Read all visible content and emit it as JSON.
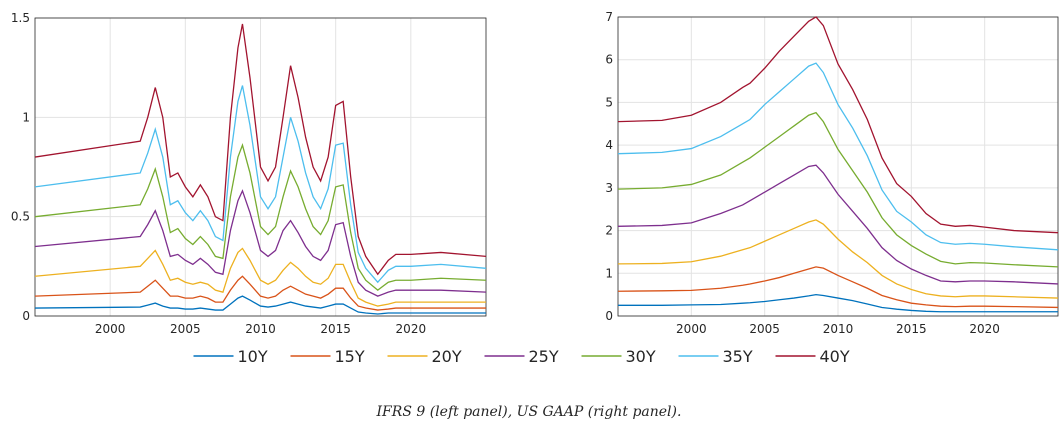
{
  "chart_data": [
    {
      "type": "line",
      "xlim": [
        1995,
        2025
      ],
      "xticks": [
        2000,
        2005,
        2010,
        2015,
        2020
      ],
      "ylim": [
        0,
        1.5
      ],
      "yticks": [
        0,
        0.5,
        1,
        1.5
      ],
      "grid": true,
      "x": [
        1995,
        2002,
        2002.5,
        2003,
        2003.5,
        2004,
        2004.5,
        2005,
        2005.5,
        2006,
        2006.5,
        2007,
        2007.5,
        2008,
        2008.5,
        2008.8,
        2009.3,
        2010,
        2010.5,
        2011,
        2011.5,
        2012,
        2012.5,
        2013,
        2013.5,
        2014,
        2014.5,
        2015,
        2015.5,
        2016,
        2016.5,
        2017,
        2017.8,
        2018.5,
        2019,
        2020,
        2022,
        2025
      ],
      "series": [
        {
          "name": "10Y",
          "color": "#0072BD",
          "values": [
            0.04,
            0.045,
            0.055,
            0.065,
            0.05,
            0.04,
            0.04,
            0.035,
            0.035,
            0.04,
            0.035,
            0.03,
            0.03,
            0.06,
            0.09,
            0.1,
            0.08,
            0.05,
            0.045,
            0.05,
            0.06,
            0.07,
            0.06,
            0.05,
            0.045,
            0.04,
            0.05,
            0.06,
            0.06,
            0.04,
            0.02,
            0.015,
            0.01,
            0.015,
            0.015,
            0.015,
            0.015,
            0.015
          ]
        },
        {
          "name": "15Y",
          "color": "#D95319",
          "values": [
            0.1,
            0.12,
            0.15,
            0.18,
            0.14,
            0.1,
            0.1,
            0.09,
            0.09,
            0.1,
            0.09,
            0.07,
            0.07,
            0.13,
            0.18,
            0.2,
            0.16,
            0.1,
            0.09,
            0.1,
            0.13,
            0.15,
            0.13,
            0.11,
            0.1,
            0.09,
            0.11,
            0.14,
            0.14,
            0.09,
            0.05,
            0.04,
            0.03,
            0.035,
            0.04,
            0.04,
            0.04,
            0.04
          ]
        },
        {
          "name": "20Y",
          "color": "#EDB120",
          "values": [
            0.2,
            0.25,
            0.29,
            0.33,
            0.26,
            0.18,
            0.19,
            0.17,
            0.16,
            0.17,
            0.16,
            0.13,
            0.12,
            0.24,
            0.32,
            0.34,
            0.28,
            0.18,
            0.16,
            0.18,
            0.23,
            0.27,
            0.24,
            0.2,
            0.17,
            0.16,
            0.19,
            0.26,
            0.26,
            0.17,
            0.09,
            0.07,
            0.05,
            0.06,
            0.07,
            0.07,
            0.07,
            0.07
          ]
        },
        {
          "name": "25Y",
          "color": "#7E2F8E",
          "values": [
            0.35,
            0.4,
            0.46,
            0.53,
            0.43,
            0.3,
            0.31,
            0.28,
            0.26,
            0.29,
            0.26,
            0.22,
            0.21,
            0.43,
            0.58,
            0.63,
            0.52,
            0.33,
            0.3,
            0.33,
            0.43,
            0.48,
            0.42,
            0.35,
            0.3,
            0.28,
            0.33,
            0.46,
            0.47,
            0.3,
            0.17,
            0.13,
            0.1,
            0.12,
            0.13,
            0.13,
            0.13,
            0.12
          ]
        },
        {
          "name": "30Y",
          "color": "#77AC30",
          "values": [
            0.5,
            0.56,
            0.64,
            0.74,
            0.6,
            0.42,
            0.44,
            0.39,
            0.36,
            0.4,
            0.36,
            0.3,
            0.29,
            0.6,
            0.8,
            0.86,
            0.72,
            0.45,
            0.41,
            0.45,
            0.6,
            0.73,
            0.65,
            0.54,
            0.45,
            0.41,
            0.48,
            0.65,
            0.66,
            0.42,
            0.24,
            0.18,
            0.13,
            0.17,
            0.18,
            0.18,
            0.19,
            0.18
          ]
        },
        {
          "name": "35Y",
          "color": "#4DBEEE",
          "values": [
            0.65,
            0.72,
            0.82,
            0.94,
            0.8,
            0.56,
            0.58,
            0.52,
            0.48,
            0.53,
            0.48,
            0.4,
            0.38,
            0.8,
            1.08,
            1.16,
            0.96,
            0.6,
            0.54,
            0.6,
            0.8,
            1.0,
            0.88,
            0.72,
            0.6,
            0.54,
            0.64,
            0.86,
            0.87,
            0.56,
            0.32,
            0.24,
            0.17,
            0.23,
            0.25,
            0.25,
            0.26,
            0.24
          ]
        },
        {
          "name": "40Y",
          "color": "#A2142F",
          "values": [
            0.8,
            0.88,
            1.0,
            1.15,
            1.0,
            0.7,
            0.72,
            0.65,
            0.6,
            0.66,
            0.6,
            0.5,
            0.48,
            1.0,
            1.35,
            1.47,
            1.2,
            0.75,
            0.68,
            0.75,
            1.0,
            1.26,
            1.1,
            0.9,
            0.75,
            0.68,
            0.8,
            1.06,
            1.08,
            0.7,
            0.4,
            0.3,
            0.21,
            0.28,
            0.31,
            0.31,
            0.32,
            0.3
          ]
        }
      ]
    },
    {
      "type": "line",
      "xlim": [
        1995,
        2025
      ],
      "xticks": [
        2000,
        2005,
        2010,
        2015,
        2020
      ],
      "ylim": [
        0,
        7
      ],
      "yticks": [
        0,
        1,
        2,
        3,
        4,
        5,
        6,
        7
      ],
      "grid": true,
      "x": [
        1995,
        1998,
        2000,
        2002,
        2003.5,
        2004,
        2005,
        2006,
        2007,
        2008,
        2008.5,
        2009,
        2010,
        2011,
        2012,
        2013,
        2014,
        2015,
        2016,
        2017,
        2018,
        2019,
        2020,
        2022,
        2025
      ],
      "series": [
        {
          "color": "#0072BD",
          "values": [
            0.25,
            0.25,
            0.26,
            0.27,
            0.3,
            0.31,
            0.34,
            0.38,
            0.42,
            0.47,
            0.5,
            0.48,
            0.42,
            0.36,
            0.28,
            0.2,
            0.16,
            0.13,
            0.11,
            0.1,
            0.1,
            0.1,
            0.1,
            0.1,
            0.1
          ]
        },
        {
          "color": "#D95319",
          "values": [
            0.58,
            0.59,
            0.6,
            0.65,
            0.72,
            0.75,
            0.82,
            0.9,
            1.0,
            1.1,
            1.15,
            1.12,
            0.95,
            0.8,
            0.65,
            0.48,
            0.38,
            0.3,
            0.26,
            0.23,
            0.22,
            0.23,
            0.23,
            0.22,
            0.2
          ]
        },
        {
          "color": "#EDB120",
          "values": [
            1.22,
            1.23,
            1.27,
            1.4,
            1.55,
            1.6,
            1.75,
            1.9,
            2.05,
            2.2,
            2.25,
            2.15,
            1.8,
            1.5,
            1.25,
            0.95,
            0.75,
            0.62,
            0.52,
            0.47,
            0.45,
            0.47,
            0.47,
            0.45,
            0.42
          ]
        },
        {
          "color": "#7E2F8E",
          "values": [
            2.1,
            2.12,
            2.18,
            2.4,
            2.6,
            2.7,
            2.9,
            3.1,
            3.3,
            3.5,
            3.53,
            3.35,
            2.85,
            2.45,
            2.05,
            1.6,
            1.3,
            1.1,
            0.95,
            0.82,
            0.8,
            0.82,
            0.82,
            0.8,
            0.75
          ]
        },
        {
          "color": "#77AC30",
          "values": [
            2.97,
            3.0,
            3.08,
            3.3,
            3.6,
            3.7,
            3.95,
            4.2,
            4.45,
            4.7,
            4.76,
            4.55,
            3.9,
            3.4,
            2.9,
            2.3,
            1.9,
            1.65,
            1.45,
            1.28,
            1.22,
            1.25,
            1.24,
            1.2,
            1.15
          ]
        },
        {
          "color": "#4DBEEE",
          "values": [
            3.8,
            3.83,
            3.92,
            4.2,
            4.5,
            4.6,
            4.95,
            5.25,
            5.55,
            5.85,
            5.92,
            5.7,
            4.95,
            4.4,
            3.75,
            2.95,
            2.45,
            2.2,
            1.9,
            1.72,
            1.68,
            1.7,
            1.68,
            1.62,
            1.55
          ]
        },
        {
          "color": "#A2142F",
          "values": [
            4.55,
            4.58,
            4.7,
            5.0,
            5.35,
            5.45,
            5.8,
            6.2,
            6.55,
            6.9,
            7.0,
            6.8,
            5.9,
            5.3,
            4.6,
            3.7,
            3.1,
            2.8,
            2.4,
            2.15,
            2.1,
            2.12,
            2.08,
            2.0,
            1.95
          ]
        }
      ]
    }
  ],
  "caption": "IFRS 9 (left panel), US GAAP (right panel)."
}
